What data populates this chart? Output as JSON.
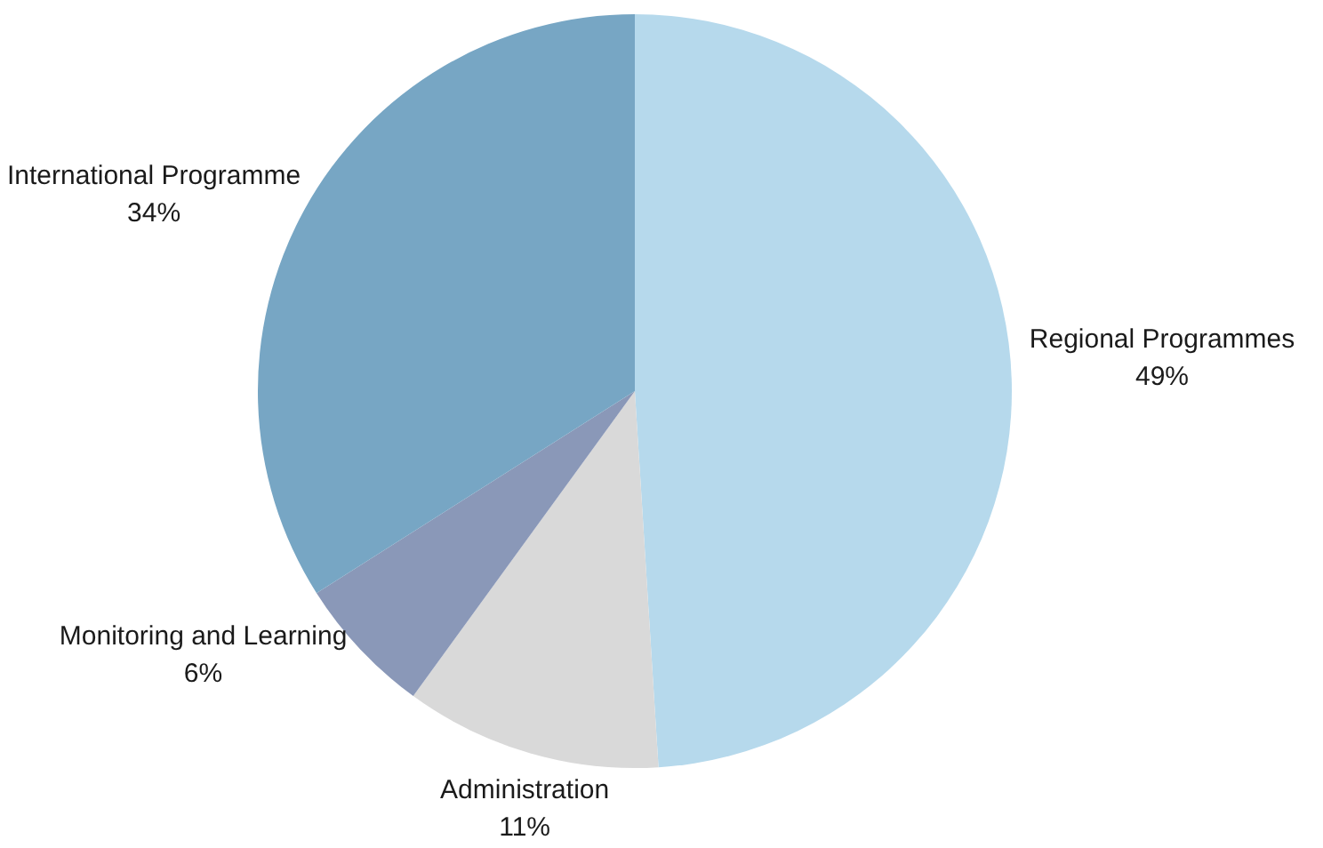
{
  "chart_data": {
    "type": "pie",
    "categories": [
      "Regional Programmes",
      "Administration",
      "Monitoring and Learning",
      "International Programme"
    ],
    "values": [
      49,
      11,
      6,
      34
    ],
    "colors": [
      "#b6d9ec",
      "#d9d9d9",
      "#8a98b8",
      "#77a6c4"
    ],
    "value_labels": [
      "49%",
      "11%",
      "6%",
      "34%"
    ],
    "legend": false
  }
}
